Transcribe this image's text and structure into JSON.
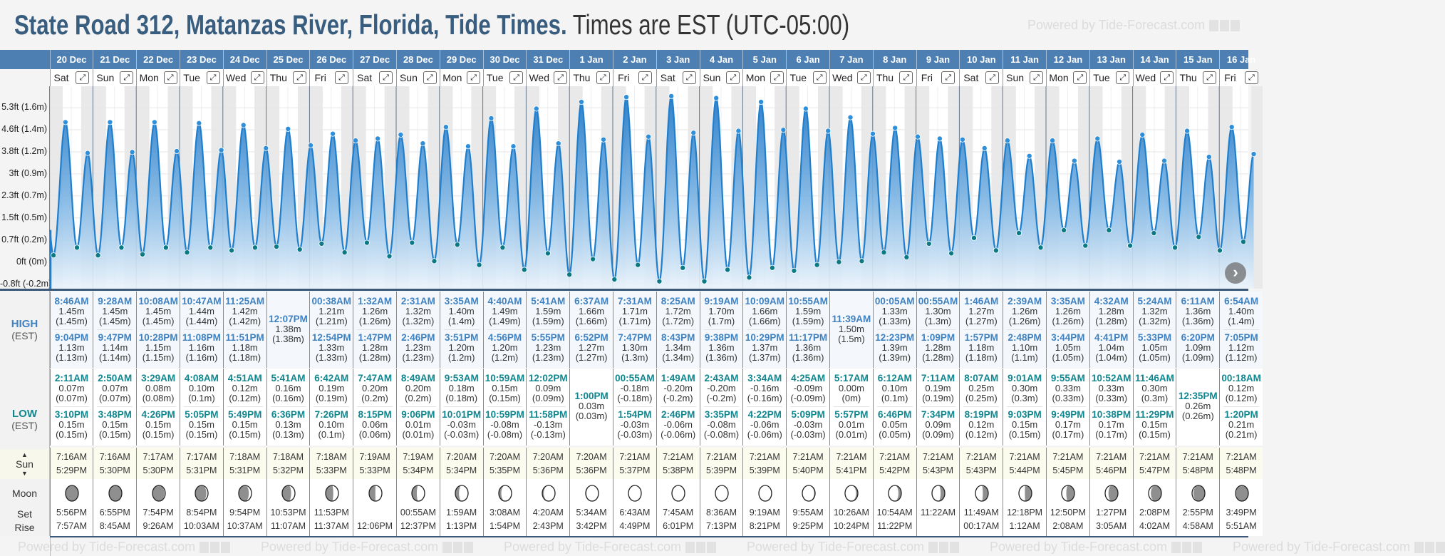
{
  "title": {
    "location": "State Road 312, Matanzas River, Florida, Tide Times.",
    "timezone": "Times are EST (UTC-05:00)"
  },
  "watermark": "Powered by Tide-Forecast.com",
  "labels": {
    "high": "HIGH",
    "low": "LOW",
    "est": "(EST)",
    "sun": "Sun",
    "moon": "Moon",
    "set": "Set",
    "rise": "Rise",
    "up_arrow": "▲",
    "down_arrow": "▼",
    "expand": "⤢",
    "next": "›"
  },
  "y_axis": [
    {
      "label": "5.3ft (1.6m)",
      "ft": 5.25
    },
    {
      "label": "4.6ft (1.4m)",
      "ft": 4.5
    },
    {
      "label": "3.8ft (1.2m)",
      "ft": 3.75
    },
    {
      "label": "3ft (0.9m)",
      "ft": 3.0
    },
    {
      "label": "2.3ft (0.7m)",
      "ft": 2.25
    },
    {
      "label": "1.5ft (0.5m)",
      "ft": 1.5
    },
    {
      "label": "0.7ft (0.2m)",
      "ft": 0.75
    },
    {
      "label": "0ft (0m)",
      "ft": 0
    },
    {
      "label": "-0.8ft (-0.2m)",
      "ft": -0.75
    }
  ],
  "colors": {
    "header": "#4d7fb3",
    "high": "#3f82c2",
    "low": "#10868f",
    "line": "#1f7fcf",
    "night": "#e9e9e9"
  },
  "days": [
    {
      "date": "20 Dec",
      "weekday": "Sat",
      "highs": [
        [
          "8:46AM",
          "1.45m",
          "(1.45m)"
        ],
        [
          "9:04PM",
          "1.13m",
          "(1.13m)"
        ]
      ],
      "lows": [
        [
          "2:11AM",
          "0.07m",
          "(0.07m)"
        ],
        [
          "3:10PM",
          "0.15m",
          "(0.15m)"
        ]
      ],
      "sun": [
        "7:16AM",
        "5:29PM"
      ],
      "moon": {
        "set": "5:56PM",
        "rise": "7:57AM",
        "phase": 0.015
      }
    },
    {
      "date": "21 Dec",
      "weekday": "Sun",
      "highs": [
        [
          "9:28AM",
          "1.45m",
          "(1.45m)"
        ],
        [
          "9:47PM",
          "1.14m",
          "(1.14m)"
        ]
      ],
      "lows": [
        [
          "2:50AM",
          "0.07m",
          "(0.07m)"
        ],
        [
          "3:48PM",
          "0.15m",
          "(0.15m)"
        ]
      ],
      "sun": [
        "7:16AM",
        "5:30PM"
      ],
      "moon": {
        "set": "6:55PM",
        "rise": "8:45AM",
        "phase": 0.049
      }
    },
    {
      "date": "22 Dec",
      "weekday": "Mon",
      "highs": [
        [
          "10:08AM",
          "1.45m",
          "(1.45m)"
        ],
        [
          "10:28PM",
          "1.15m",
          "(1.15m)"
        ]
      ],
      "lows": [
        [
          "3:29AM",
          "0.08m",
          "(0.08m)"
        ],
        [
          "4:26PM",
          "0.15m",
          "(0.15m)"
        ]
      ],
      "sun": [
        "7:17AM",
        "5:30PM"
      ],
      "moon": {
        "set": "7:54PM",
        "rise": "9:26AM",
        "phase": 0.083
      }
    },
    {
      "date": "23 Dec",
      "weekday": "Tue",
      "highs": [
        [
          "10:47AM",
          "1.44m",
          "(1.44m)"
        ],
        [
          "11:08PM",
          "1.16m",
          "(1.16m)"
        ]
      ],
      "lows": [
        [
          "4:08AM",
          "0.10m",
          "(0.1m)"
        ],
        [
          "5:05PM",
          "0.15m",
          "(0.15m)"
        ]
      ],
      "sun": [
        "7:17AM",
        "5:31PM"
      ],
      "moon": {
        "set": "8:54PM",
        "rise": "10:03AM",
        "phase": 0.117
      }
    },
    {
      "date": "24 Dec",
      "weekday": "Wed",
      "highs": [
        [
          "11:25AM",
          "1.42m",
          "(1.42m)"
        ],
        [
          "11:51PM",
          "1.18m",
          "(1.18m)"
        ]
      ],
      "lows": [
        [
          "4:51AM",
          "0.12m",
          "(0.12m)"
        ],
        [
          "5:49PM",
          "0.15m",
          "(0.15m)"
        ]
      ],
      "sun": [
        "7:18AM",
        "5:31PM"
      ],
      "moon": {
        "set": "9:54PM",
        "rise": "10:37AM",
        "phase": 0.151
      }
    },
    {
      "date": "25 Dec",
      "weekday": "Thu",
      "highs": [
        [
          "12:07PM",
          "1.38m",
          "(1.38m)"
        ]
      ],
      "lows": [
        [
          "5:41AM",
          "0.16m",
          "(0.16m)"
        ],
        [
          "6:36PM",
          "0.13m",
          "(0.13m)"
        ]
      ],
      "sun": [
        "7:18AM",
        "5:32PM"
      ],
      "moon": {
        "set": "10:53PM",
        "rise": "11:07AM",
        "phase": 0.185
      }
    },
    {
      "date": "26 Dec",
      "weekday": "Fri",
      "highs": [
        [
          "00:38AM",
          "1.21m",
          "(1.21m)"
        ],
        [
          "12:54PM",
          "1.33m",
          "(1.33m)"
        ]
      ],
      "lows": [
        [
          "6:42AM",
          "0.19m",
          "(0.19m)"
        ],
        [
          "7:26PM",
          "0.10m",
          "(0.1m)"
        ]
      ],
      "sun": [
        "7:18AM",
        "5:33PM"
      ],
      "moon": {
        "set": "11:53PM",
        "rise": "11:37AM",
        "phase": 0.219
      }
    },
    {
      "date": "27 Dec",
      "weekday": "Sat",
      "highs": [
        [
          "1:32AM",
          "1.26m",
          "(1.26m)"
        ],
        [
          "1:47PM",
          "1.28m",
          "(1.28m)"
        ]
      ],
      "lows": [
        [
          "7:47AM",
          "0.20m",
          "(0.2m)"
        ],
        [
          "8:15PM",
          "0.06m",
          "(0.06m)"
        ]
      ],
      "sun": [
        "7:19AM",
        "5:33PM"
      ],
      "moon": {
        "set": "",
        "rise": "12:06PM",
        "phase": 0.253
      }
    },
    {
      "date": "28 Dec",
      "weekday": "Sun",
      "highs": [
        [
          "2:31AM",
          "1.32m",
          "(1.32m)"
        ],
        [
          "2:46PM",
          "1.23m",
          "(1.23m)"
        ]
      ],
      "lows": [
        [
          "8:49AM",
          "0.20m",
          "(0.2m)"
        ],
        [
          "9:06PM",
          "0.01m",
          "(0.01m)"
        ]
      ],
      "sun": [
        "7:19AM",
        "5:34PM"
      ],
      "moon": {
        "set": "00:55AM",
        "rise": "12:37PM",
        "phase": 0.286
      }
    },
    {
      "date": "29 Dec",
      "weekday": "Mon",
      "highs": [
        [
          "3:35AM",
          "1.40m",
          "(1.4m)"
        ],
        [
          "3:51PM",
          "1.20m",
          "(1.2m)"
        ]
      ],
      "lows": [
        [
          "9:53AM",
          "0.18m",
          "(0.18m)"
        ],
        [
          "10:01PM",
          "-0.03m",
          "(-0.03m)"
        ]
      ],
      "sun": [
        "7:20AM",
        "5:34PM"
      ],
      "moon": {
        "set": "1:59AM",
        "rise": "1:13PM",
        "phase": 0.32
      }
    },
    {
      "date": "30 Dec",
      "weekday": "Tue",
      "highs": [
        [
          "4:40AM",
          "1.49m",
          "(1.49m)"
        ],
        [
          "4:56PM",
          "1.20m",
          "(1.2m)"
        ]
      ],
      "lows": [
        [
          "10:59AM",
          "0.15m",
          "(0.15m)"
        ],
        [
          "10:59PM",
          "-0.08m",
          "(-0.08m)"
        ]
      ],
      "sun": [
        "7:20AM",
        "5:35PM"
      ],
      "moon": {
        "set": "3:08AM",
        "rise": "1:54PM",
        "phase": 0.354
      }
    },
    {
      "date": "31 Dec",
      "weekday": "Wed",
      "highs": [
        [
          "5:41AM",
          "1.59m",
          "(1.59m)"
        ],
        [
          "5:55PM",
          "1.23m",
          "(1.23m)"
        ]
      ],
      "lows": [
        [
          "12:02PM",
          "0.09m",
          "(0.09m)"
        ],
        [
          "11:58PM",
          "-0.13m",
          "(-0.13m)"
        ]
      ],
      "sun": [
        "7:20AM",
        "5:36PM"
      ],
      "moon": {
        "set": "4:20AM",
        "rise": "2:43PM",
        "phase": 0.388
      }
    },
    {
      "date": "1 Jan",
      "weekday": "Thu",
      "highs": [
        [
          "6:37AM",
          "1.66m",
          "(1.66m)"
        ],
        [
          "6:52PM",
          "1.27m",
          "(1.27m)"
        ]
      ],
      "lows": [
        [
          "1:00PM",
          "0.03m",
          "(0.03m)"
        ]
      ],
      "sun": [
        "7:20AM",
        "5:36PM"
      ],
      "moon": {
        "set": "5:34AM",
        "rise": "3:42PM",
        "phase": 0.422
      }
    },
    {
      "date": "2 Jan",
      "weekday": "Fri",
      "highs": [
        [
          "7:31AM",
          "1.71m",
          "(1.71m)"
        ],
        [
          "7:47PM",
          "1.30m",
          "(1.3m)"
        ]
      ],
      "lows": [
        [
          "00:55AM",
          "-0.18m",
          "(-0.18m)"
        ],
        [
          "1:54PM",
          "-0.03m",
          "(-0.03m)"
        ]
      ],
      "sun": [
        "7:21AM",
        "5:37PM"
      ],
      "moon": {
        "set": "6:43AM",
        "rise": "4:49PM",
        "phase": 0.456
      }
    },
    {
      "date": "3 Jan",
      "weekday": "Sat",
      "highs": [
        [
          "8:25AM",
          "1.72m",
          "(1.72m)"
        ],
        [
          "8:43PM",
          "1.34m",
          "(1.34m)"
        ]
      ],
      "lows": [
        [
          "1:49AM",
          "-0.20m",
          "(-0.2m)"
        ],
        [
          "2:46PM",
          "-0.06m",
          "(-0.06m)"
        ]
      ],
      "sun": [
        "7:21AM",
        "5:38PM"
      ],
      "moon": {
        "set": "7:45AM",
        "rise": "6:01PM",
        "phase": 0.49
      }
    },
    {
      "date": "4 Jan",
      "weekday": "Sun",
      "highs": [
        [
          "9:19AM",
          "1.70m",
          "(1.7m)"
        ],
        [
          "9:38PM",
          "1.36m",
          "(1.36m)"
        ]
      ],
      "lows": [
        [
          "2:43AM",
          "-0.20m",
          "(-0.2m)"
        ],
        [
          "3:35PM",
          "-0.08m",
          "(-0.08m)"
        ]
      ],
      "sun": [
        "7:21AM",
        "5:39PM"
      ],
      "moon": {
        "set": "8:36AM",
        "rise": "7:13PM",
        "phase": 0.524
      }
    },
    {
      "date": "5 Jan",
      "weekday": "Mon",
      "highs": [
        [
          "10:09AM",
          "1.66m",
          "(1.66m)"
        ],
        [
          "10:29PM",
          "1.37m",
          "(1.37m)"
        ]
      ],
      "lows": [
        [
          "3:34AM",
          "-0.16m",
          "(-0.16m)"
        ],
        [
          "4:22PM",
          "-0.06m",
          "(-0.06m)"
        ]
      ],
      "sun": [
        "7:21AM",
        "5:39PM"
      ],
      "moon": {
        "set": "9:19AM",
        "rise": "8:21PM",
        "phase": 0.558
      }
    },
    {
      "date": "6 Jan",
      "weekday": "Tue",
      "highs": [
        [
          "10:55AM",
          "1.59m",
          "(1.59m)"
        ],
        [
          "11:17PM",
          "1.36m",
          "(1.36m)"
        ]
      ],
      "lows": [
        [
          "4:25AM",
          "-0.09m",
          "(-0.09m)"
        ],
        [
          "5:09PM",
          "-0.03m",
          "(-0.03m)"
        ]
      ],
      "sun": [
        "7:21AM",
        "5:40PM"
      ],
      "moon": {
        "set": "9:55AM",
        "rise": "9:25PM",
        "phase": 0.591
      }
    },
    {
      "date": "7 Jan",
      "weekday": "Wed",
      "highs": [
        [
          "11:39AM",
          "1.50m",
          "(1.5m)"
        ]
      ],
      "lows": [
        [
          "5:17AM",
          "0.00m",
          "(0m)"
        ],
        [
          "5:57PM",
          "0.01m",
          "(0.01m)"
        ]
      ],
      "sun": [
        "7:21AM",
        "5:41PM"
      ],
      "moon": {
        "set": "10:26AM",
        "rise": "10:24PM",
        "phase": 0.625
      }
    },
    {
      "date": "8 Jan",
      "weekday": "Thu",
      "highs": [
        [
          "00:05AM",
          "1.33m",
          "(1.33m)"
        ],
        [
          "12:23PM",
          "1.39m",
          "(1.39m)"
        ]
      ],
      "lows": [
        [
          "6:12AM",
          "0.10m",
          "(0.1m)"
        ],
        [
          "6:46PM",
          "0.05m",
          "(0.05m)"
        ]
      ],
      "sun": [
        "7:21AM",
        "5:42PM"
      ],
      "moon": {
        "set": "10:54AM",
        "rise": "11:22PM",
        "phase": 0.659
      }
    },
    {
      "date": "9 Jan",
      "weekday": "Fri",
      "highs": [
        [
          "00:55AM",
          "1.30m",
          "(1.3m)"
        ],
        [
          "1:09PM",
          "1.28m",
          "(1.28m)"
        ]
      ],
      "lows": [
        [
          "7:11AM",
          "0.19m",
          "(0.19m)"
        ],
        [
          "7:34PM",
          "0.09m",
          "(0.09m)"
        ]
      ],
      "sun": [
        "7:21AM",
        "5:43PM"
      ],
      "moon": {
        "set": "11:22AM",
        "rise": "",
        "phase": 0.693
      }
    },
    {
      "date": "10 Jan",
      "weekday": "Sat",
      "highs": [
        [
          "1:46AM",
          "1.27m",
          "(1.27m)"
        ],
        [
          "1:57PM",
          "1.18m",
          "(1.18m)"
        ]
      ],
      "lows": [
        [
          "8:07AM",
          "0.25m",
          "(0.25m)"
        ],
        [
          "8:19PM",
          "0.12m",
          "(0.12m)"
        ]
      ],
      "sun": [
        "7:21AM",
        "5:43PM"
      ],
      "moon": {
        "set": "11:49AM",
        "rise": "00:17AM",
        "phase": 0.727
      }
    },
    {
      "date": "11 Jan",
      "weekday": "Sun",
      "highs": [
        [
          "2:39AM",
          "1.26m",
          "(1.26m)"
        ],
        [
          "2:48PM",
          "1.10m",
          "(1.1m)"
        ]
      ],
      "lows": [
        [
          "9:01AM",
          "0.30m",
          "(0.3m)"
        ],
        [
          "9:03PM",
          "0.15m",
          "(0.15m)"
        ]
      ],
      "sun": [
        "7:21AM",
        "5:44PM"
      ],
      "moon": {
        "set": "12:18PM",
        "rise": "1:12AM",
        "phase": 0.761
      }
    },
    {
      "date": "12 Jan",
      "weekday": "Mon",
      "highs": [
        [
          "3:35AM",
          "1.26m",
          "(1.26m)"
        ],
        [
          "3:44PM",
          "1.05m",
          "(1.05m)"
        ]
      ],
      "lows": [
        [
          "9:55AM",
          "0.33m",
          "(0.33m)"
        ],
        [
          "9:49PM",
          "0.17m",
          "(0.17m)"
        ]
      ],
      "sun": [
        "7:21AM",
        "5:45PM"
      ],
      "moon": {
        "set": "12:50PM",
        "rise": "2:08AM",
        "phase": 0.795
      }
    },
    {
      "date": "13 Jan",
      "weekday": "Tue",
      "highs": [
        [
          "4:32AM",
          "1.28m",
          "(1.28m)"
        ],
        [
          "4:41PM",
          "1.04m",
          "(1.04m)"
        ]
      ],
      "lows": [
        [
          "10:52AM",
          "0.33m",
          "(0.33m)"
        ],
        [
          "10:38PM",
          "0.17m",
          "(0.17m)"
        ]
      ],
      "sun": [
        "7:21AM",
        "5:46PM"
      ],
      "moon": {
        "set": "1:27PM",
        "rise": "3:05AM",
        "phase": 0.829
      }
    },
    {
      "date": "14 Jan",
      "weekday": "Wed",
      "highs": [
        [
          "5:24AM",
          "1.32m",
          "(1.32m)"
        ],
        [
          "5:33PM",
          "1.05m",
          "(1.05m)"
        ]
      ],
      "lows": [
        [
          "11:46AM",
          "0.30m",
          "(0.3m)"
        ],
        [
          "11:29PM",
          "0.15m",
          "(0.15m)"
        ]
      ],
      "sun": [
        "7:21AM",
        "5:47PM"
      ],
      "moon": {
        "set": "2:08PM",
        "rise": "4:02AM",
        "phase": 0.862
      }
    },
    {
      "date": "15 Jan",
      "weekday": "Thu",
      "highs": [
        [
          "6:11AM",
          "1.36m",
          "(1.36m)"
        ],
        [
          "6:20PM",
          "1.09m",
          "(1.09m)"
        ]
      ],
      "lows": [
        [
          "12:35PM",
          "0.26m",
          "(0.26m)"
        ]
      ],
      "sun": [
        "7:21AM",
        "5:48PM"
      ],
      "moon": {
        "set": "2:55PM",
        "rise": "4:58AM",
        "phase": 0.896
      }
    },
    {
      "date": "16 Jan",
      "weekday": "Fri",
      "highs": [
        [
          "6:54AM",
          "1.40m",
          "(1.4m)"
        ],
        [
          "7:05PM",
          "1.12m",
          "(1.12m)"
        ]
      ],
      "lows": [
        [
          "00:18AM",
          "0.12m",
          "(0.12m)"
        ],
        [
          "1:20PM",
          "0.21m",
          "(0.21m)"
        ]
      ],
      "sun": [
        "7:21AM",
        "5:48PM"
      ],
      "moon": {
        "set": "3:49PM",
        "rise": "5:51AM",
        "phase": 0.93
      }
    }
  ]
}
